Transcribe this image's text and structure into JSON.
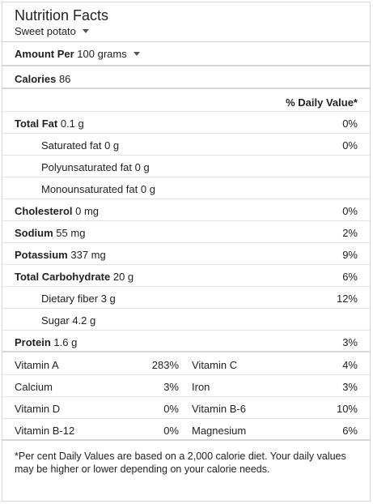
{
  "header": {
    "title": "Nutrition Facts",
    "food": "Sweet potato"
  },
  "amount": {
    "label": "Amount Per",
    "value": "100 grams"
  },
  "calories": {
    "label": "Calories",
    "value": "86"
  },
  "dv_header": "% Daily Value*",
  "nutrients": [
    {
      "label": "Total Fat",
      "amount": "0.1 g",
      "pct": "0%",
      "bold": true
    },
    {
      "label": "Saturated fat",
      "amount": "0 g",
      "pct": "0%",
      "bold": false
    },
    {
      "label": "Polyunsaturated fat",
      "amount": "0 g",
      "pct": "",
      "bold": false
    },
    {
      "label": "Monounsaturated fat",
      "amount": "0 g",
      "pct": "",
      "bold": false
    },
    {
      "label": "Cholesterol",
      "amount": "0 mg",
      "pct": "0%",
      "bold": true
    },
    {
      "label": "Sodium",
      "amount": "55 mg",
      "pct": "2%",
      "bold": true
    },
    {
      "label": "Potassium",
      "amount": "337 mg",
      "pct": "9%",
      "bold": true
    },
    {
      "label": "Total Carbohydrate",
      "amount": "20 g",
      "pct": "6%",
      "bold": true
    },
    {
      "label": "Dietary fiber",
      "amount": "3 g",
      "pct": "12%",
      "bold": false
    },
    {
      "label": "Sugar",
      "amount": "4.2 g",
      "pct": "",
      "bold": false
    },
    {
      "label": "Protein",
      "amount": "1.6 g",
      "pct": "3%",
      "bold": true
    }
  ],
  "vitamins": [
    {
      "name1": "Vitamin A",
      "pct1": "283%",
      "name2": "Vitamin C",
      "pct2": "4%"
    },
    {
      "name1": "Calcium",
      "pct1": "3%",
      "name2": "Iron",
      "pct2": "3%"
    },
    {
      "name1": "Vitamin D",
      "pct1": "0%",
      "name2": "Vitamin B-6",
      "pct2": "10%"
    },
    {
      "name1": "Vitamin B-12",
      "pct1": "0%",
      "name2": "Magnesium",
      "pct2": "6%"
    }
  ],
  "footnote": "*Per cent Daily Values are based on a 2,000 calorie diet. Your daily values may be higher or lower depending on your calorie needs."
}
